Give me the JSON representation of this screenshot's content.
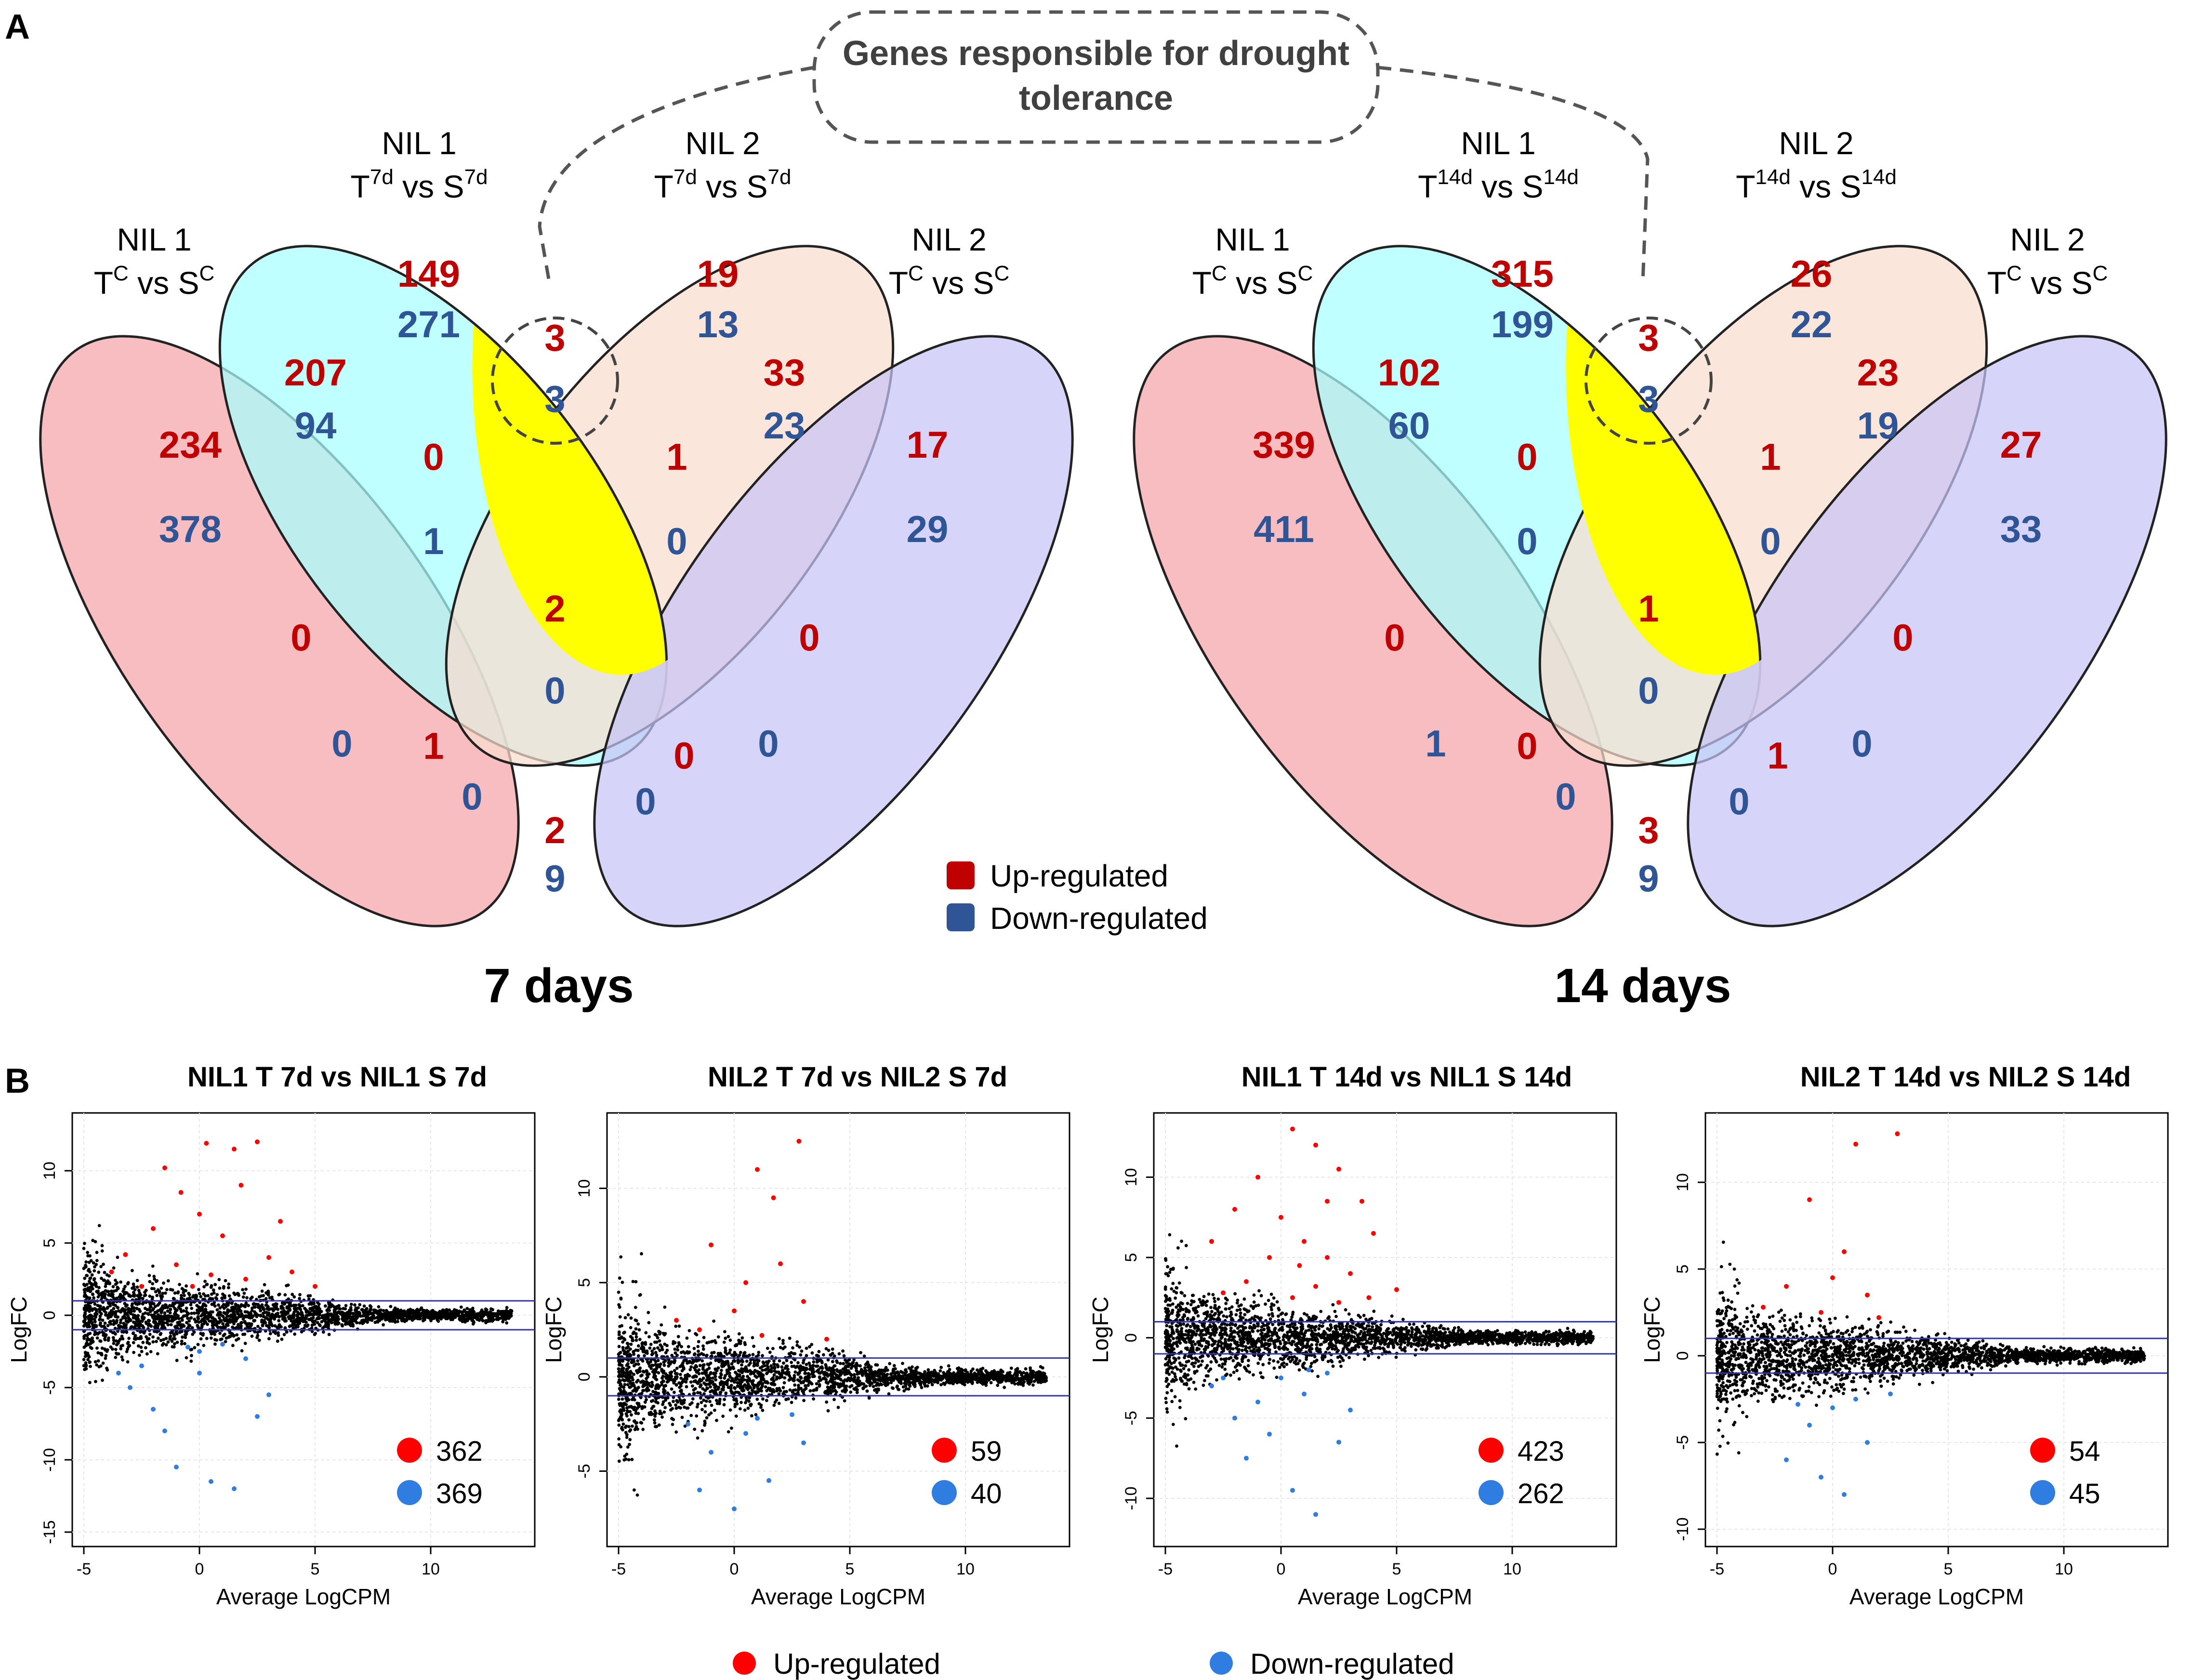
{
  "panels": {
    "a_label": "A",
    "b_label": "B"
  },
  "callout": {
    "line1": "Genes responsible for drought",
    "line2": "tolerance"
  },
  "colors": {
    "up": "#c00000",
    "down": "#2f5597",
    "set1": "#f4a3a8",
    "set2": "#a8ffff",
    "set3": "#f9dccf",
    "set4": "#c8c4f6",
    "scatter_up": "#ff0000",
    "scatter_down": "#2f7de0",
    "hline": "#3333aa"
  },
  "legend_a": {
    "up": "Up-regulated",
    "down": "Down-regulated"
  },
  "legend_b": {
    "up": "Up-regulated",
    "down": "Down-regulated"
  },
  "venn": [
    {
      "caption": "7 days",
      "sets": [
        {
          "line1": "NIL 1",
          "t": "T",
          "tsup": "C",
          "vs": " vs S",
          "ssup": "C"
        },
        {
          "line1": "NIL 1",
          "t": "T",
          "tsup": "7d",
          "vs": " vs S",
          "ssup": "7d"
        },
        {
          "line1": "NIL 2",
          "t": "T",
          "tsup": "7d",
          "vs": " vs S",
          "ssup": "7d"
        },
        {
          "line1": "NIL 2",
          "t": "T",
          "tsup": "C",
          "vs": " vs S",
          "ssup": "C"
        }
      ],
      "regions": {
        "only1": {
          "up": "234",
          "down": "378"
        },
        "only2": {
          "up": "149",
          "down": "271"
        },
        "only3": {
          "up": "19",
          "down": "13"
        },
        "only4": {
          "up": "17",
          "down": "29"
        },
        "r12": {
          "up": "207",
          "down": "94"
        },
        "r23": {
          "up": "3",
          "down": "3"
        },
        "r34": {
          "up": "33",
          "down": "23"
        },
        "r13": {
          "up": "0",
          "down": "0"
        },
        "r24": {
          "up": "0",
          "down": "0"
        },
        "r14": {
          "up": "2",
          "down": "9"
        },
        "r123": {
          "up": "0",
          "down": "1"
        },
        "r234": {
          "up": "1",
          "down": "0"
        },
        "r134": {
          "up": "1",
          "down": "0"
        },
        "r124": {
          "up": "0",
          "down": "0"
        },
        "r1234": {
          "up": "2",
          "down": "0"
        }
      }
    },
    {
      "caption": "14 days",
      "sets": [
        {
          "line1": "NIL 1",
          "t": "T",
          "tsup": "C",
          "vs": " vs S",
          "ssup": "C"
        },
        {
          "line1": "NIL 1",
          "t": "T",
          "tsup": "14d",
          "vs": " vs S",
          "ssup": "14d"
        },
        {
          "line1": "NIL 2",
          "t": "T",
          "tsup": "14d",
          "vs": " vs S",
          "ssup": "14d"
        },
        {
          "line1": "NIL 2",
          "t": "T",
          "tsup": "C",
          "vs": " vs S",
          "ssup": "C"
        }
      ],
      "regions": {
        "only1": {
          "up": "339",
          "down": "411"
        },
        "only2": {
          "up": "315",
          "down": "199"
        },
        "only3": {
          "up": "26",
          "down": "22"
        },
        "only4": {
          "up": "27",
          "down": "33"
        },
        "r12": {
          "up": "102",
          "down": "60"
        },
        "r23": {
          "up": "3",
          "down": "3"
        },
        "r34": {
          "up": "23",
          "down": "19"
        },
        "r13": {
          "up": "0",
          "down": "1"
        },
        "r24": {
          "up": "0",
          "down": "0"
        },
        "r14": {
          "up": "3",
          "down": "9"
        },
        "r123": {
          "up": "0",
          "down": "0"
        },
        "r234": {
          "up": "1",
          "down": "0"
        },
        "r134": {
          "up": "0",
          "down": "0"
        },
        "r124": {
          "up": "1",
          "down": "0"
        },
        "r1234": {
          "up": "1",
          "down": "0"
        }
      }
    }
  ],
  "chart_data": [
    {
      "type": "scatter",
      "title": "NIL1 T 7d vs NIL1 S 7d",
      "xlabel": "Average LogCPM",
      "ylabel": "LogFC",
      "xlim": [
        -5.5,
        14.5
      ],
      "ylim": [
        -16,
        14
      ],
      "xticks": [
        "-5",
        "0",
        "5",
        "10"
      ],
      "yticks": [
        "-15",
        "-10",
        "-5",
        "0",
        "5",
        "10"
      ],
      "hlines": [
        1,
        -1
      ],
      "up_count": "362",
      "down_count": "369",
      "series": [
        {
          "name": "Up-regulated",
          "points": [
            [
              -1.5,
              10.2
            ],
            [
              0.3,
              11.9
            ],
            [
              -0.8,
              8.5
            ],
            [
              1.5,
              11.5
            ],
            [
              2.5,
              12
            ],
            [
              -3.2,
              4.2
            ],
            [
              -2.0,
              6.0
            ],
            [
              0.0,
              7.0
            ],
            [
              1.0,
              5.5
            ],
            [
              3.0,
              4.0
            ],
            [
              -1.0,
              3.5
            ],
            [
              0.5,
              2.8
            ],
            [
              2.0,
              2.5
            ],
            [
              -2.5,
              2.0
            ],
            [
              4.0,
              3.0
            ],
            [
              5.0,
              2.0
            ],
            [
              -3.8,
              3.0
            ],
            [
              1.8,
              9.0
            ],
            [
              -0.3,
              2.0
            ],
            [
              3.5,
              6.5
            ]
          ]
        },
        {
          "name": "Down-regulated",
          "points": [
            [
              -3.0,
              -5.0
            ],
            [
              -2.0,
              -6.5
            ],
            [
              -1.0,
              -10.5
            ],
            [
              0.5,
              -11.5
            ],
            [
              1.5,
              -12.0
            ],
            [
              -2.5,
              -3.5
            ],
            [
              0.0,
              -2.5
            ],
            [
              2.0,
              -3.0
            ],
            [
              -1.5,
              -8.0
            ],
            [
              3.0,
              -5.5
            ],
            [
              1.0,
              -2.0
            ],
            [
              -3.5,
              -4.0
            ],
            [
              2.5,
              -7.0
            ],
            [
              0.0,
              -4.0
            ],
            [
              -0.5,
              -2.2
            ]
          ]
        }
      ]
    },
    {
      "type": "scatter",
      "title": "NIL2 T 7d vs NIL2 S 7d",
      "xlabel": "Average LogCPM",
      "ylabel": "LogFC",
      "xlim": [
        -5.5,
        14.5
      ],
      "ylim": [
        -9,
        14
      ],
      "xticks": [
        "-5",
        "0",
        "5",
        "10"
      ],
      "yticks": [
        "-5",
        "0",
        "5",
        "10"
      ],
      "hlines": [
        1,
        -1
      ],
      "up_count": "59",
      "down_count": "40",
      "series": [
        {
          "name": "Up-regulated",
          "points": [
            [
              2.8,
              12.5
            ],
            [
              1.0,
              11.0
            ],
            [
              1.7,
              9.5
            ],
            [
              -1.0,
              7.0
            ],
            [
              0.5,
              5.0
            ],
            [
              2.0,
              6.0
            ],
            [
              -2.5,
              3.0
            ],
            [
              3.0,
              4.0
            ],
            [
              -1.5,
              2.5
            ],
            [
              0.0,
              3.5
            ],
            [
              4.0,
              2.0
            ],
            [
              1.2,
              2.2
            ]
          ]
        },
        {
          "name": "Down-regulated",
          "points": [
            [
              -1.0,
              -4.0
            ],
            [
              0.5,
              -3.0
            ],
            [
              1.5,
              -5.5
            ],
            [
              -2.0,
              -2.5
            ],
            [
              2.5,
              -2.0
            ],
            [
              0.0,
              -7.0
            ],
            [
              -1.5,
              -6.0
            ],
            [
              3.0,
              -3.5
            ],
            [
              1.0,
              -2.2
            ]
          ]
        }
      ]
    },
    {
      "type": "scatter",
      "title": "NIL1 T 14d vs NIL1 S 14d",
      "xlabel": "Average LogCPM",
      "ylabel": "LogFC",
      "xlim": [
        -5.5,
        14.5
      ],
      "ylim": [
        -13,
        14
      ],
      "xticks": [
        "-5",
        "0",
        "5",
        "10"
      ],
      "yticks": [
        "-10",
        "-5",
        "0",
        "5",
        "10"
      ],
      "hlines": [
        1,
        -1
      ],
      "up_count": "423",
      "down_count": "262",
      "series": [
        {
          "name": "Up-regulated",
          "points": [
            [
              0.5,
              13.0
            ],
            [
              1.5,
              12.0
            ],
            [
              2.5,
              10.5
            ],
            [
              -1.0,
              10.0
            ],
            [
              3.5,
              8.5
            ],
            [
              -3.0,
              6.0
            ],
            [
              -2.0,
              8.0
            ],
            [
              0.0,
              7.5
            ],
            [
              1.0,
              6.0
            ],
            [
              2.0,
              5.0
            ],
            [
              3.0,
              4.0
            ],
            [
              4.0,
              6.5
            ],
            [
              -1.5,
              3.5
            ],
            [
              0.5,
              2.5
            ],
            [
              2.5,
              2.2
            ],
            [
              -2.5,
              2.8
            ],
            [
              1.5,
              3.2
            ],
            [
              3.8,
              2.5
            ],
            [
              5.0,
              3.0
            ],
            [
              -0.5,
              5.0
            ],
            [
              2.0,
              8.5
            ],
            [
              0.8,
              4.5
            ]
          ]
        },
        {
          "name": "Down-regulated",
          "points": [
            [
              -3.0,
              -3.0
            ],
            [
              -2.0,
              -5.0
            ],
            [
              -1.0,
              -4.0
            ],
            [
              0.0,
              -2.5
            ],
            [
              1.0,
              -3.5
            ],
            [
              2.0,
              -2.2
            ],
            [
              3.0,
              -4.5
            ],
            [
              -1.5,
              -7.5
            ],
            [
              0.5,
              -9.5
            ],
            [
              1.5,
              -11.0
            ],
            [
              -0.5,
              -6.0
            ],
            [
              2.5,
              -6.5
            ],
            [
              -2.5,
              -2.5
            ],
            [
              1.2,
              -2.0
            ]
          ]
        }
      ]
    },
    {
      "type": "scatter",
      "title": "NIL2 T 14d vs NIL2 S 14d",
      "xlabel": "Average LogCPM",
      "ylabel": "LogFC",
      "xlim": [
        -5.5,
        14.5
      ],
      "ylim": [
        -11,
        14
      ],
      "xticks": [
        "-5",
        "0",
        "5",
        "10"
      ],
      "yticks": [
        "-10",
        "-5",
        "0",
        "5",
        "10"
      ],
      "hlines": [
        1,
        -1
      ],
      "up_count": "54",
      "down_count": "45",
      "series": [
        {
          "name": "Up-regulated",
          "points": [
            [
              1.0,
              12.2
            ],
            [
              2.8,
              12.8
            ],
            [
              -1.0,
              9.0
            ],
            [
              0.5,
              6.0
            ],
            [
              -2.0,
              4.0
            ],
            [
              1.5,
              3.5
            ],
            [
              -0.5,
              2.5
            ],
            [
              2.0,
              2.2
            ],
            [
              -3.0,
              2.8
            ],
            [
              0.0,
              4.5
            ]
          ]
        },
        {
          "name": "Down-regulated",
          "points": [
            [
              -1.0,
              -4.0
            ],
            [
              0.0,
              -3.0
            ],
            [
              1.0,
              -2.5
            ],
            [
              -2.0,
              -6.0
            ],
            [
              -0.5,
              -7.0
            ],
            [
              1.5,
              -5.0
            ],
            [
              2.5,
              -2.2
            ],
            [
              -1.5,
              -2.8
            ],
            [
              0.5,
              -8.0
            ]
          ]
        }
      ]
    }
  ]
}
